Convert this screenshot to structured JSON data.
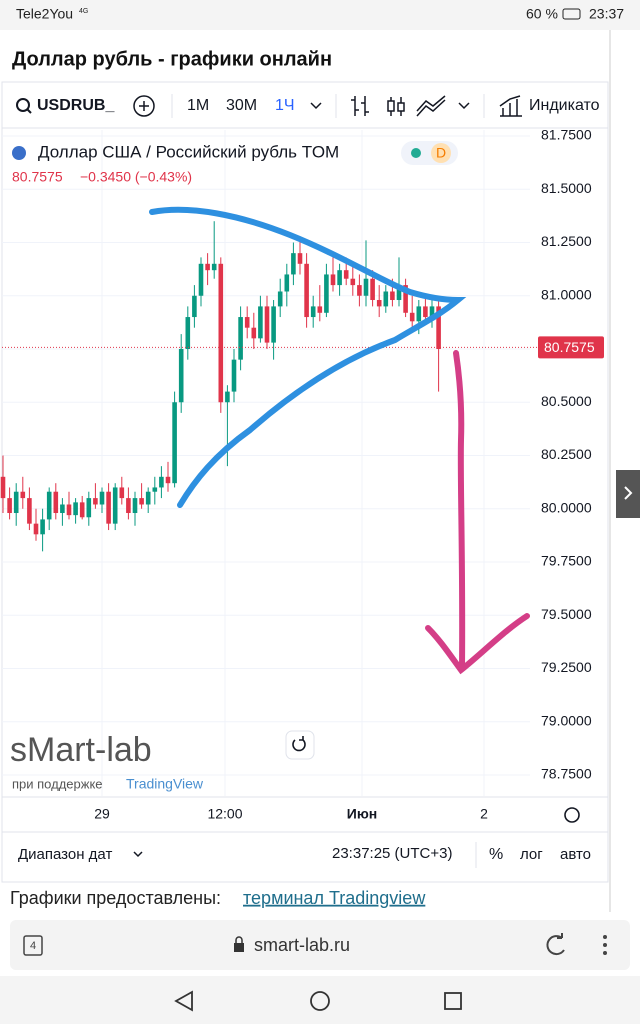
{
  "status_bar": {
    "carrier": "Tele2You",
    "network": "4G",
    "battery": "60 %",
    "time": "23:37"
  },
  "page_title": "Доллар рубль - графики онлайн",
  "toolbar": {
    "symbol": "USDRUB_",
    "intervals": [
      "1М",
      "30М",
      "1Ч"
    ],
    "indicators": "Индикато"
  },
  "chart": {
    "title": "Доллар США / Российский рубль TOM",
    "badge": "D",
    "price": "80.7575",
    "change": "−0.3450 (−0.43%)",
    "up_color": "#089981",
    "down_color": "#e0344a",
    "ylim": [
      78.75,
      81.75
    ],
    "yticks": [
      {
        "value": 81.75,
        "label": "81.7500"
      },
      {
        "value": 81.5,
        "label": "81.5000"
      },
      {
        "value": 81.25,
        "label": "81.2500"
      },
      {
        "value": 81,
        "label": "81.0000"
      },
      {
        "value": 80.75,
        "label": "80.7500"
      },
      {
        "value": 80.5,
        "label": "80.5000"
      },
      {
        "value": 80.25,
        "label": "80.2500"
      },
      {
        "value": 80,
        "label": "80.0000"
      },
      {
        "value": 79.75,
        "label": "79.7500"
      },
      {
        "value": 79.5,
        "label": "79.5000"
      },
      {
        "value": 79.25,
        "label": "79.2500"
      },
      {
        "value": 79,
        "label": "79.0000"
      },
      {
        "value": 78.75,
        "label": "78.7500"
      }
    ],
    "last_price": {
      "value": 80.7575,
      "label": "80.7575"
    },
    "xticks": [
      "29",
      "12:00",
      "Июн",
      "2"
    ],
    "candles": [
      [
        80.15,
        80.25,
        79.98,
        80.05
      ],
      [
        80.05,
        80.1,
        79.95,
        79.98
      ],
      [
        79.98,
        80.12,
        79.92,
        80.08
      ],
      [
        80.08,
        80.15,
        80.0,
        80.05
      ],
      [
        80.05,
        80.1,
        79.9,
        79.93
      ],
      [
        79.93,
        80.0,
        79.85,
        79.88
      ],
      [
        79.88,
        80.0,
        79.8,
        79.95
      ],
      [
        79.95,
        80.1,
        79.9,
        80.08
      ],
      [
        80.08,
        80.12,
        79.95,
        79.98
      ],
      [
        79.98,
        80.05,
        79.92,
        80.02
      ],
      [
        80.02,
        80.08,
        79.95,
        79.97
      ],
      [
        79.97,
        80.05,
        79.93,
        80.03
      ],
      [
        80.03,
        80.06,
        79.95,
        79.96
      ],
      [
        79.96,
        80.08,
        79.92,
        80.05
      ],
      [
        80.05,
        80.12,
        80.0,
        80.02
      ],
      [
        80.02,
        80.1,
        79.98,
        80.08
      ],
      [
        80.08,
        80.12,
        79.9,
        79.93
      ],
      [
        79.93,
        80.12,
        79.9,
        80.1
      ],
      [
        80.1,
        80.15,
        80.02,
        80.05
      ],
      [
        80.05,
        80.1,
        79.95,
        79.98
      ],
      [
        79.98,
        80.08,
        79.92,
        80.05
      ],
      [
        80.05,
        80.12,
        80.0,
        80.02
      ],
      [
        80.02,
        80.1,
        79.98,
        80.08
      ],
      [
        80.08,
        80.15,
        80.02,
        80.1
      ],
      [
        80.1,
        80.2,
        80.05,
        80.15
      ],
      [
        80.15,
        80.22,
        80.08,
        80.12
      ],
      [
        80.12,
        80.55,
        80.1,
        80.5
      ],
      [
        80.5,
        80.82,
        80.45,
        80.75
      ],
      [
        80.75,
        80.95,
        80.7,
        80.9
      ],
      [
        80.9,
        81.05,
        80.85,
        81.0
      ],
      [
        81.0,
        81.18,
        80.95,
        81.15
      ],
      [
        81.15,
        81.2,
        81.05,
        81.12
      ],
      [
        81.12,
        81.35,
        81.08,
        81.15
      ],
      [
        81.15,
        81.18,
        80.45,
        80.5
      ],
      [
        80.5,
        80.58,
        80.2,
        80.55
      ],
      [
        80.55,
        80.75,
        80.5,
        80.7
      ],
      [
        80.7,
        80.95,
        80.65,
        80.9
      ],
      [
        80.9,
        80.95,
        80.8,
        80.85
      ],
      [
        80.85,
        80.92,
        80.75,
        80.8
      ],
      [
        80.8,
        81.0,
        80.78,
        80.95
      ],
      [
        80.95,
        81.0,
        80.75,
        80.78
      ],
      [
        80.78,
        80.98,
        80.7,
        80.95
      ],
      [
        80.95,
        81.08,
        80.9,
        81.02
      ],
      [
        81.02,
        81.15,
        80.95,
        81.1
      ],
      [
        81.1,
        81.25,
        81.05,
        81.2
      ],
      [
        81.2,
        81.28,
        81.1,
        81.15
      ],
      [
        81.15,
        81.2,
        80.85,
        80.9
      ],
      [
        80.9,
        81.0,
        80.85,
        80.95
      ],
      [
        80.95,
        81.05,
        80.88,
        80.92
      ],
      [
        80.92,
        81.15,
        80.9,
        81.1
      ],
      [
        81.1,
        81.18,
        81.02,
        81.05
      ],
      [
        81.05,
        81.15,
        81.0,
        81.12
      ],
      [
        81.12,
        81.18,
        81.05,
        81.08
      ],
      [
        81.08,
        81.15,
        81.0,
        81.05
      ],
      [
        81.05,
        81.1,
        80.95,
        81.0
      ],
      [
        81.0,
        81.26,
        80.95,
        81.08
      ],
      [
        81.08,
        81.12,
        80.95,
        80.98
      ],
      [
        80.98,
        81.05,
        80.9,
        80.95
      ],
      [
        80.95,
        81.05,
        80.92,
        81.02
      ],
      [
        81.02,
        81.08,
        80.95,
        80.98
      ],
      [
        80.98,
        81.18,
        80.95,
        81.05
      ],
      [
        81.05,
        81.08,
        80.9,
        80.92
      ],
      [
        80.92,
        81.0,
        80.85,
        80.88
      ],
      [
        80.88,
        80.98,
        80.82,
        80.95
      ],
      [
        80.95,
        81.0,
        80.88,
        80.9
      ],
      [
        80.9,
        80.98,
        80.85,
        80.95
      ],
      [
        80.95,
        80.98,
        80.55,
        80.75
      ]
    ]
  },
  "watermark": {
    "brand": "sMart-lab",
    "support": "при поддержке",
    "partner": "TradingView"
  },
  "chart_footer": {
    "range": "Диапазон дат",
    "clock": "23:37:25 (UTC+3)",
    "percent": "%",
    "log": "лог",
    "auto": "авто"
  },
  "credits": {
    "text": "Графики предоставлены:",
    "link": "терминал Tradingview"
  },
  "browser": {
    "tabs": "4",
    "url": "smart-lab.ru"
  }
}
